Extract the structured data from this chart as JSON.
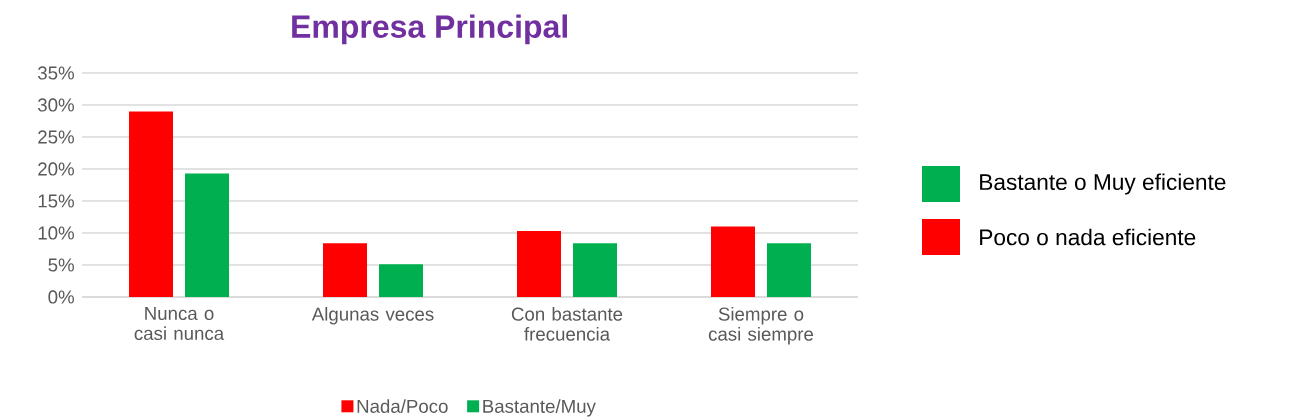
{
  "chart_data": {
    "type": "bar",
    "title": "Empresa Principal",
    "categories": [
      "Nunca o casi nunca",
      "Algunas veces",
      "Con bastante frecuencia",
      "Siempre o casi siempre"
    ],
    "series": [
      {
        "name": "Nada/Poco",
        "color": "#ff0000",
        "values": [
          29.0,
          8.4,
          10.3,
          11.0
        ]
      },
      {
        "name": "Bastante/Muy",
        "color": "#00b050",
        "values": [
          19.3,
          5.1,
          8.4,
          8.4
        ]
      }
    ],
    "ylim": [
      0,
      35
    ],
    "yticks": [
      {
        "value": 0,
        "label": "0%"
      },
      {
        "value": 5,
        "label": "5%"
      },
      {
        "value": 10,
        "label": "10%"
      },
      {
        "value": 15,
        "label": "15%"
      },
      {
        "value": 20,
        "label": "20%"
      },
      {
        "value": 25,
        "label": "25%"
      },
      {
        "value": 30,
        "label": "30%"
      },
      {
        "value": 35,
        "label": "35%"
      }
    ],
    "grid": "y",
    "legend": "bottom",
    "annotations": [
      "Bastante o Muy eficiente",
      "Poco o nada eficiente"
    ]
  }
}
